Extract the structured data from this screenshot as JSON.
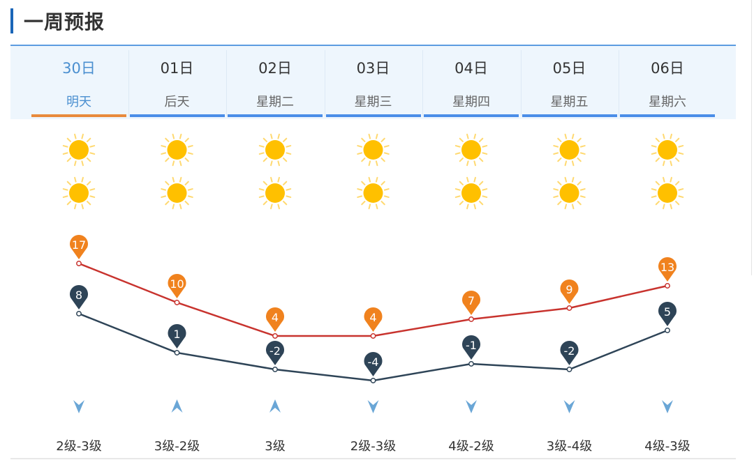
{
  "title": "一周预报",
  "days": [
    {
      "date": "30日",
      "label": "明天",
      "high": 17,
      "low": 8,
      "wind_dir": "down",
      "wind": "2级-3级",
      "day_icon": "sun-icon",
      "night_icon": "sun-icon",
      "active": true
    },
    {
      "date": "01日",
      "label": "后天",
      "high": 10,
      "low": 1,
      "wind_dir": "up",
      "wind": "3级-2级",
      "day_icon": "sun-icon",
      "night_icon": "sun-icon"
    },
    {
      "date": "02日",
      "label": "星期二",
      "high": 4,
      "low": -2,
      "wind_dir": "up",
      "wind": "3级",
      "day_icon": "sun-icon",
      "night_icon": "sun-icon"
    },
    {
      "date": "03日",
      "label": "星期三",
      "high": 4,
      "low": -4,
      "wind_dir": "down",
      "wind": "2级-3级",
      "day_icon": "sun-icon",
      "night_icon": "sun-icon"
    },
    {
      "date": "04日",
      "label": "星期四",
      "high": 7,
      "low": -1,
      "wind_dir": "down",
      "wind": "4级-2级",
      "day_icon": "sun-icon",
      "night_icon": "sun-icon"
    },
    {
      "date": "05日",
      "label": "星期五",
      "high": 9,
      "low": -2,
      "wind_dir": "down",
      "wind": "3级-4级",
      "day_icon": "sun-icon",
      "night_icon": "sun-icon"
    },
    {
      "date": "06日",
      "label": "星期六",
      "high": 13,
      "low": 5,
      "wind_dir": "down",
      "wind": "4级-3级",
      "day_icon": "sun-icon",
      "night_icon": "sun-icon"
    }
  ],
  "colors": {
    "high_line": "#c8332e",
    "high_pin": "#f0821e",
    "low_line": "#2e4457",
    "low_pin": "#2e4457",
    "active": "#e88a3c",
    "tab_line": "#4a8de8",
    "sun": "#ffc000",
    "wind_arrow": "#6aa6d6"
  }
}
